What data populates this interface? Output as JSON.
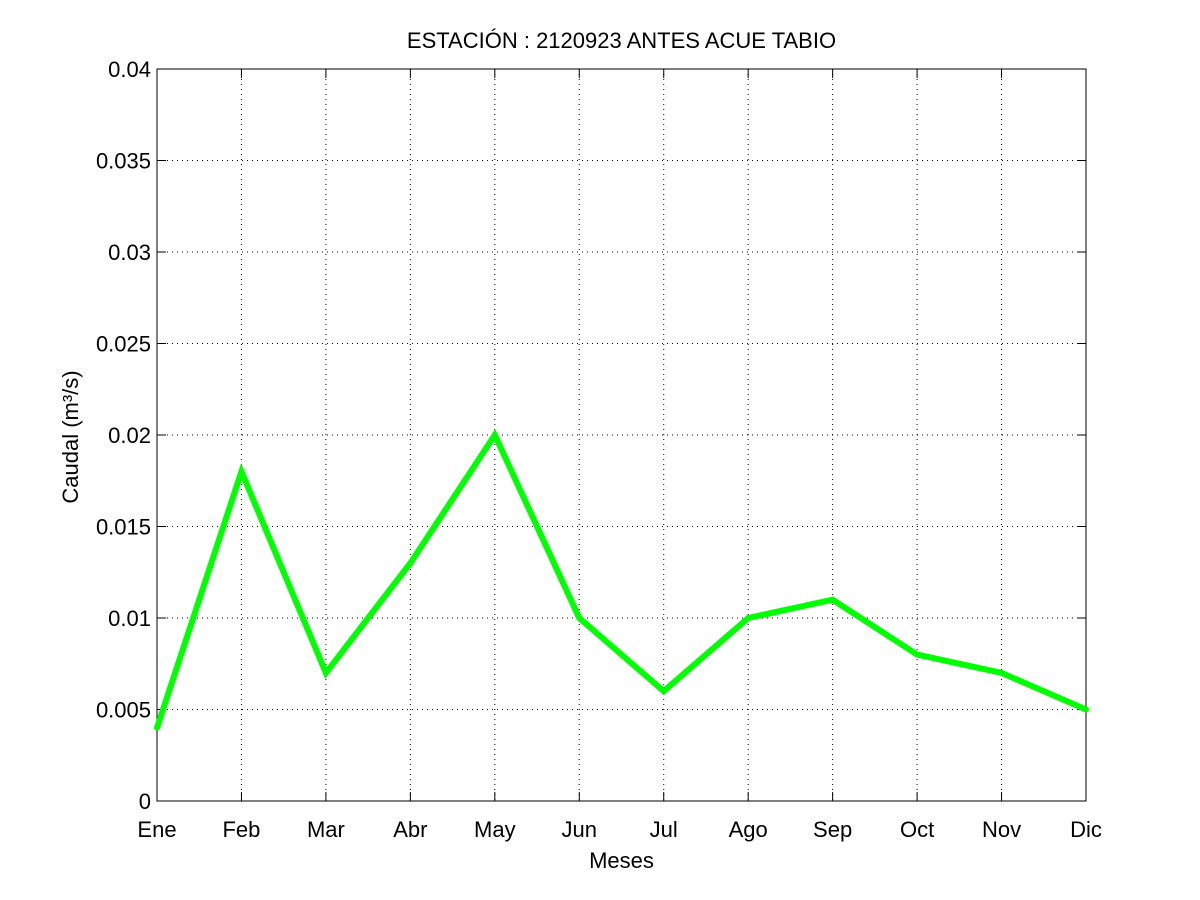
{
  "chart_data": {
    "type": "line",
    "title": "ESTACIÓN :  2120923  ANTES ACUE TABIO",
    "xlabel": "Meses",
    "ylabel": "Caudal (m³/s)",
    "categories": [
      "Ene",
      "Feb",
      "Mar",
      "Abr",
      "May",
      "Jun",
      "Jul",
      "Ago",
      "Sep",
      "Oct",
      "Nov",
      "Dic"
    ],
    "series": [
      {
        "values": [
          0.004,
          0.018,
          0.007,
          0.013,
          0.02,
          0.01,
          0.006,
          0.01,
          0.011,
          0.008,
          0.007,
          0.005
        ],
        "color": "#00ff00"
      }
    ],
    "ylim": [
      0,
      0.04
    ],
    "yticks": [
      0,
      0.005,
      0.01,
      0.015,
      0.02,
      0.025,
      0.03,
      0.035,
      0.04
    ],
    "ytick_labels": [
      "0",
      "0.005",
      "0.01",
      "0.015",
      "0.02",
      "0.025",
      "0.03",
      "0.035",
      "0.04"
    ],
    "grid": true,
    "line_color": "#00ff00"
  }
}
